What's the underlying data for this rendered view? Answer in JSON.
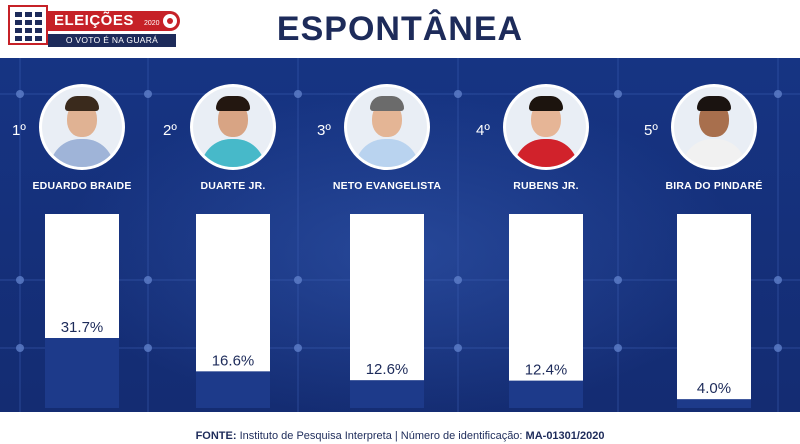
{
  "header": {
    "logo_title": "ELEIÇÕES",
    "logo_year": "2020",
    "logo_tagline": "O VOTO É NA GUARÁ",
    "title": "ESPONTÂNEA"
  },
  "colors": {
    "navy": "#1d2b5a",
    "bar_fill": "#1d3a8a",
    "bar_background": "#ffffff",
    "accent_red": "#c62127",
    "chart_background": "#15307c"
  },
  "chart_data": {
    "type": "bar",
    "title": "ESPONTÂNEA",
    "categories": [
      "EDUARDO BRAIDE",
      "DUARTE JR.",
      "NETO EVANGELISTA",
      "RUBENS JR.",
      "BIRA DO PINDARÉ"
    ],
    "ranks": [
      "1º",
      "2º",
      "3º",
      "4º",
      "5º"
    ],
    "values": [
      31.7,
      16.6,
      12.6,
      12.4,
      4.0
    ],
    "value_labels": [
      "31.7%",
      "16.6%",
      "12.6%",
      "12.4%",
      "4.0%"
    ],
    "unit": "%",
    "ylim": [
      0,
      100
    ],
    "grid": true,
    "legend": "none"
  },
  "candidates": [
    {
      "rank": "1º",
      "name": "EDUARDO BRAIDE",
      "shirt_color": "#9fb4d8",
      "skin": "#e0b293",
      "hair": "#3a2a1c"
    },
    {
      "rank": "2º",
      "name": "DUARTE JR.",
      "shirt_color": "#47b9c9",
      "skin": "#d8a484",
      "hair": "#231710"
    },
    {
      "rank": "3º",
      "name": "NETO EVANGELISTA",
      "shirt_color": "#b9d3ef",
      "skin": "#e4b595",
      "hair": "#6b6b6b"
    },
    {
      "rank": "4º",
      "name": "RUBENS JR.",
      "shirt_color": "#d1222b",
      "skin": "#e6b596",
      "hair": "#1c140e"
    },
    {
      "rank": "5º",
      "name": "BIRA DO PINDARÉ",
      "shirt_color": "#f1f1f1",
      "skin": "#a86f4d",
      "hair": "#1a1310"
    }
  ],
  "footer": {
    "source_label": "FONTE:",
    "source_text": "Instituto de Pesquisa Interpreta | Número de identificação:",
    "id_value": "MA-01301/2020"
  }
}
